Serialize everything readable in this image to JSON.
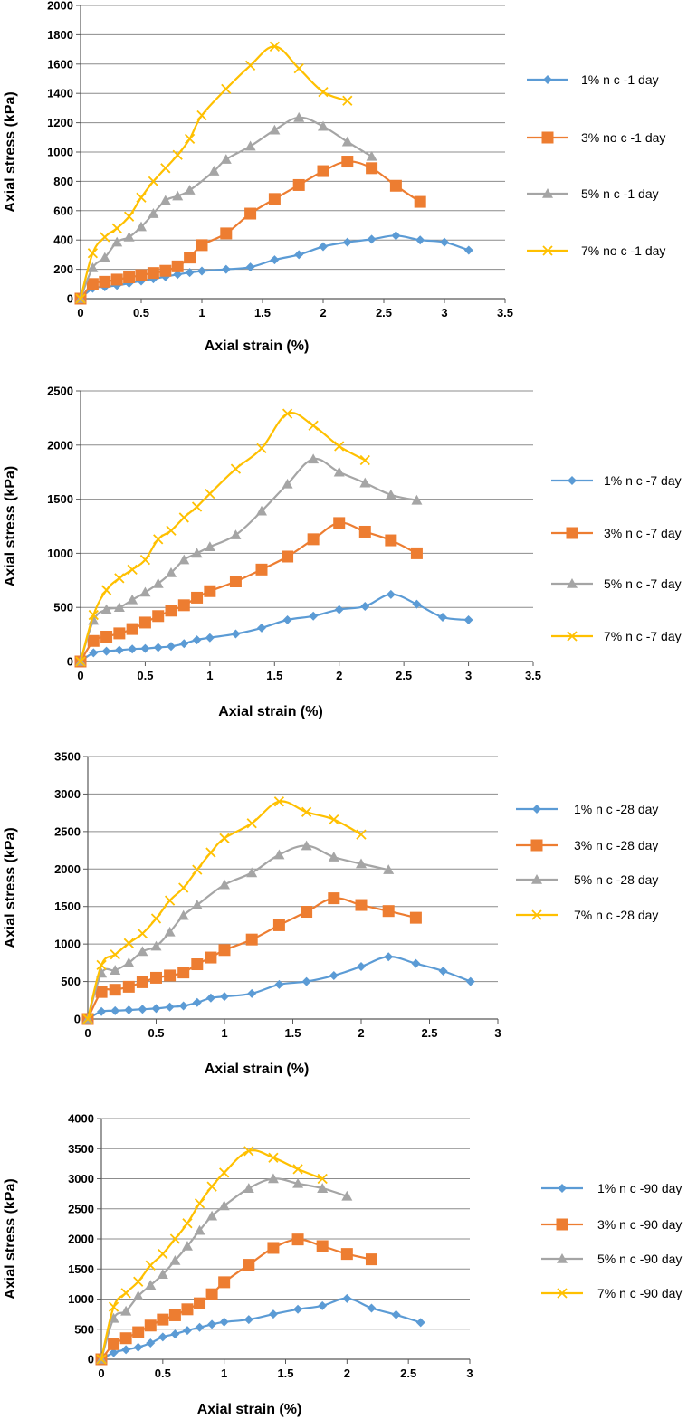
{
  "colors": {
    "s1": "#5B9BD5",
    "s3": "#ED7D31",
    "s5": "#A5A5A5",
    "s7": "#FFC000",
    "grid": "#8c8c8c",
    "axis": "#595959",
    "text": "#000000"
  },
  "chart_data": [
    {
      "type": "line",
      "xlabel": "Axial strain (%)",
      "ylabel": "Axial stress (kPa)",
      "xlim": [
        0,
        3.5
      ],
      "ylim": [
        0,
        2000
      ],
      "xticks": [
        "0",
        "0.5",
        "1",
        "1.5",
        "2",
        "2.5",
        "3",
        "3.5"
      ],
      "yticks": [
        "0",
        "200",
        "400",
        "600",
        "800",
        "1000",
        "1200",
        "1400",
        "1600",
        "1800",
        "2000"
      ],
      "grid": true,
      "legend": "right",
      "series": [
        {
          "name": "1% n c -1 day",
          "marker": "diamond",
          "x": [
            0,
            0.1,
            0.2,
            0.3,
            0.4,
            0.5,
            0.6,
            0.7,
            0.8,
            0.9,
            1,
            1.2,
            1.4,
            1.6,
            1.8,
            2,
            2.2,
            2.4,
            2.6,
            2.8,
            3,
            3.2
          ],
          "y": [
            0,
            70,
            80,
            90,
            105,
            120,
            135,
            150,
            165,
            178,
            188,
            200,
            215,
            265,
            300,
            355,
            385,
            405,
            430,
            400,
            385,
            330
          ]
        },
        {
          "name": "3% no c -1 day",
          "marker": "square",
          "x": [
            0,
            0.1,
            0.2,
            0.3,
            0.4,
            0.5,
            0.6,
            0.7,
            0.8,
            0.9,
            1,
            1.2,
            1.4,
            1.6,
            1.8,
            2,
            2.2,
            2.4,
            2.6,
            2.8
          ],
          "y": [
            0,
            100,
            115,
            130,
            145,
            160,
            175,
            190,
            220,
            280,
            365,
            445,
            580,
            680,
            775,
            870,
            935,
            890,
            770,
            660
          ]
        },
        {
          "name": "5% n c -1 day",
          "marker": "triangle",
          "x": [
            0,
            0.1,
            0.2,
            0.3,
            0.4,
            0.5,
            0.6,
            0.7,
            0.8,
            0.9,
            1.1,
            1.2,
            1.4,
            1.6,
            1.8,
            2,
            2.2,
            2.4
          ],
          "y": [
            0,
            210,
            280,
            385,
            420,
            490,
            580,
            670,
            700,
            740,
            870,
            950,
            1040,
            1150,
            1235,
            1175,
            1070,
            970
          ]
        },
        {
          "name": "7% no c -1 day",
          "marker": "x",
          "x": [
            0,
            0.1,
            0.2,
            0.3,
            0.4,
            0.5,
            0.6,
            0.7,
            0.8,
            0.9,
            1,
            1.2,
            1.4,
            1.6,
            1.8,
            2,
            2.2
          ],
          "y": [
            0,
            310,
            420,
            480,
            560,
            690,
            800,
            890,
            980,
            1090,
            1250,
            1430,
            1590,
            1720,
            1570,
            1410,
            1350
          ]
        }
      ]
    },
    {
      "type": "line",
      "xlabel": "Axial strain (%)",
      "ylabel": "Axial stress (kPa)",
      "xlim": [
        0,
        3.5
      ],
      "ylim": [
        0,
        2500
      ],
      "xticks": [
        "0",
        "0.5",
        "1",
        "1.5",
        "2",
        "2.5",
        "3",
        "3.5"
      ],
      "yticks": [
        "0",
        "500",
        "1000",
        "1500",
        "2000",
        "2500"
      ],
      "grid": true,
      "legend": "right",
      "series": [
        {
          "name": "1% n c -7 day",
          "marker": "diamond",
          "x": [
            0,
            0.1,
            0.2,
            0.3,
            0.4,
            0.5,
            0.6,
            0.7,
            0.8,
            0.9,
            1,
            1.2,
            1.4,
            1.6,
            1.8,
            2,
            2.2,
            2.4,
            2.6,
            2.8,
            3
          ],
          "y": [
            0,
            80,
            95,
            105,
            115,
            120,
            130,
            140,
            165,
            200,
            220,
            255,
            310,
            385,
            420,
            480,
            510,
            620,
            530,
            410,
            385
          ]
        },
        {
          "name": "3% n c -7 day",
          "marker": "square",
          "x": [
            0,
            0.1,
            0.2,
            0.3,
            0.4,
            0.5,
            0.6,
            0.7,
            0.8,
            0.9,
            1,
            1.2,
            1.4,
            1.6,
            1.8,
            2,
            2.2,
            2.4,
            2.6
          ],
          "y": [
            0,
            190,
            230,
            260,
            300,
            360,
            420,
            470,
            520,
            590,
            650,
            740,
            850,
            970,
            1130,
            1280,
            1200,
            1120,
            1000
          ]
        },
        {
          "name": "5% n c -7 day",
          "marker": "triangle",
          "x": [
            0,
            0.1,
            0.2,
            0.3,
            0.4,
            0.5,
            0.6,
            0.7,
            0.8,
            0.9,
            1,
            1.2,
            1.4,
            1.6,
            1.8,
            2,
            2.2,
            2.4,
            2.6
          ],
          "y": [
            0,
            380,
            480,
            500,
            570,
            640,
            720,
            820,
            940,
            1000,
            1060,
            1170,
            1390,
            1640,
            1870,
            1750,
            1650,
            1540,
            1490
          ]
        },
        {
          "name": "7% n c -7 day",
          "marker": "x",
          "x": [
            0,
            0.1,
            0.2,
            0.3,
            0.4,
            0.5,
            0.6,
            0.7,
            0.8,
            0.9,
            1,
            1.2,
            1.4,
            1.6,
            1.8,
            2,
            2.2
          ],
          "y": [
            0,
            430,
            660,
            770,
            850,
            940,
            1130,
            1210,
            1330,
            1430,
            1550,
            1780,
            1970,
            2290,
            2180,
            1990,
            1860
          ]
        }
      ]
    },
    {
      "type": "line",
      "xlabel": "Axial strain (%)",
      "ylabel": "Axial stress (kPa)",
      "xlim": [
        0,
        3
      ],
      "ylim": [
        0,
        3500
      ],
      "xticks": [
        "0",
        "0.5",
        "1",
        "1.5",
        "2",
        "2.5",
        "3"
      ],
      "yticks": [
        "0",
        "500",
        "1000",
        "1500",
        "2000",
        "2500",
        "3000",
        "3500"
      ],
      "grid": true,
      "legend": "right",
      "series": [
        {
          "name": "1% n c -28 day",
          "marker": "diamond",
          "x": [
            0,
            0.1,
            0.2,
            0.3,
            0.4,
            0.5,
            0.6,
            0.7,
            0.8,
            0.9,
            1,
            1.2,
            1.4,
            1.6,
            1.8,
            2,
            2.2,
            2.4,
            2.6,
            2.8
          ],
          "y": [
            0,
            100,
            110,
            120,
            130,
            140,
            160,
            175,
            220,
            280,
            300,
            340,
            460,
            500,
            580,
            700,
            830,
            740,
            640,
            500
          ]
        },
        {
          "name": "3% n c -28 day",
          "marker": "square",
          "x": [
            0,
            0.1,
            0.2,
            0.3,
            0.4,
            0.5,
            0.6,
            0.7,
            0.8,
            0.9,
            1,
            1.2,
            1.4,
            1.6,
            1.8,
            2,
            2.2,
            2.4
          ],
          "y": [
            0,
            360,
            390,
            430,
            490,
            550,
            580,
            620,
            730,
            820,
            920,
            1060,
            1250,
            1430,
            1610,
            1520,
            1440,
            1350
          ]
        },
        {
          "name": "5% n c -28 day",
          "marker": "triangle",
          "x": [
            0,
            0.1,
            0.2,
            0.3,
            0.4,
            0.5,
            0.6,
            0.7,
            0.8,
            1,
            1.2,
            1.4,
            1.6,
            1.8,
            2,
            2.2
          ],
          "y": [
            0,
            610,
            650,
            750,
            900,
            970,
            1160,
            1380,
            1520,
            1790,
            1950,
            2190,
            2310,
            2160,
            2070,
            1990
          ]
        },
        {
          "name": "7% n c -28 day",
          "marker": "x",
          "x": [
            0,
            0.1,
            0.2,
            0.3,
            0.4,
            0.5,
            0.6,
            0.7,
            0.8,
            0.9,
            1,
            1.2,
            1.4,
            1.6,
            1.8,
            2
          ],
          "y": [
            0,
            720,
            860,
            1010,
            1140,
            1340,
            1580,
            1750,
            1990,
            2220,
            2410,
            2610,
            2900,
            2760,
            2660,
            2460
          ]
        }
      ]
    },
    {
      "type": "line",
      "xlabel": "Axial strain (%)",
      "ylabel": "Axial stress (kPa)",
      "xlim": [
        0,
        3
      ],
      "ylim": [
        0,
        4000
      ],
      "xticks": [
        "0",
        "0.5",
        "1",
        "1.5",
        "2",
        "2.5",
        "3"
      ],
      "yticks": [
        "0",
        "500",
        "1000",
        "1500",
        "2000",
        "2500",
        "3000",
        "3500",
        "4000"
      ],
      "grid": true,
      "legend": "right",
      "series": [
        {
          "name": "1% n c -90 day",
          "marker": "diamond",
          "x": [
            0,
            0.1,
            0.2,
            0.3,
            0.4,
            0.5,
            0.6,
            0.7,
            0.8,
            0.9,
            1,
            1.2,
            1.4,
            1.6,
            1.8,
            2,
            2.2,
            2.4,
            2.6
          ],
          "y": [
            0,
            110,
            160,
            200,
            270,
            370,
            420,
            480,
            530,
            580,
            620,
            660,
            750,
            830,
            890,
            1010,
            850,
            740,
            610
          ]
        },
        {
          "name": "3% n c -90 day",
          "marker": "square",
          "x": [
            0,
            0.1,
            0.2,
            0.3,
            0.4,
            0.5,
            0.6,
            0.7,
            0.8,
            0.9,
            1,
            1.2,
            1.4,
            1.6,
            1.8,
            2,
            2.2
          ],
          "y": [
            0,
            250,
            350,
            450,
            560,
            660,
            730,
            830,
            930,
            1080,
            1280,
            1570,
            1850,
            1990,
            1880,
            1750,
            1660
          ]
        },
        {
          "name": "5% n c -90 day",
          "marker": "triangle",
          "x": [
            0,
            0.1,
            0.2,
            0.3,
            0.4,
            0.5,
            0.6,
            0.7,
            0.8,
            0.9,
            1,
            1.2,
            1.4,
            1.6,
            1.8,
            2
          ],
          "y": [
            0,
            680,
            800,
            1050,
            1230,
            1410,
            1640,
            1880,
            2140,
            2380,
            2550,
            2840,
            3000,
            2920,
            2840,
            2710
          ]
        },
        {
          "name": "7% n c -90 day",
          "marker": "x",
          "x": [
            0,
            0.1,
            0.2,
            0.3,
            0.4,
            0.5,
            0.6,
            0.7,
            0.8,
            0.9,
            1,
            1.2,
            1.4,
            1.6,
            1.8
          ],
          "y": [
            0,
            870,
            1100,
            1290,
            1560,
            1750,
            2000,
            2260,
            2590,
            2870,
            3100,
            3460,
            3350,
            3160,
            3000
          ]
        }
      ]
    }
  ]
}
